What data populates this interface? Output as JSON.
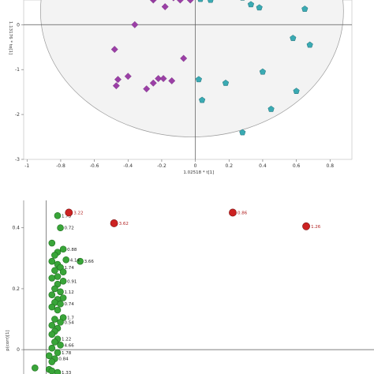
{
  "chart_data": [
    {
      "type": "scatter",
      "xlabel": "1.02518 * t[1]",
      "ylabel": "1.13176 * to[1]",
      "xlim": [
        -1.02,
        0.93
      ],
      "ylim": [
        -3.0,
        0.62
      ],
      "x_ticks": [
        "-1",
        "-0.8",
        "-0.6",
        "-0.4",
        "-0.2",
        "0",
        "0.2",
        "0.4",
        "0.6",
        "0.8"
      ],
      "y_ticks": [
        "-3",
        "-2",
        "-1",
        "0"
      ],
      "ellipse": {
        "center": [
          -0.02,
          0.3
        ],
        "radius_x": 0.9,
        "radius_y": 2.8
      },
      "colors": {
        "group_a": "#9b3fa6",
        "group_b": "#3aaab3",
        "ellipse_fill": "#f3f3f3"
      },
      "series": [
        {
          "marker": "diamond",
          "x": [
            -0.36,
            -0.48,
            -0.46,
            -0.4,
            -0.47,
            -0.29,
            -0.22,
            -0.25,
            -0.19,
            -0.14,
            -0.25,
            -0.07,
            -0.09,
            -0.03,
            -0.18,
            -0.13,
            -0.25
          ],
          "y": [
            0.0,
            -0.55,
            -1.22,
            -1.15,
            -1.36,
            -1.43,
            -1.2,
            -1.3,
            -1.2,
            -1.25,
            0.55,
            -0.75,
            0.55,
            0.55,
            0.4,
            0.6,
            0.59
          ]
        },
        {
          "marker": "pentagon",
          "x": [
            0.03,
            0.02,
            0.04,
            0.18,
            0.28,
            0.33,
            0.38,
            0.4,
            0.58,
            0.65,
            0.68,
            0.6,
            0.45,
            0.28,
            0.09
          ],
          "y": [
            0.57,
            -1.22,
            -1.68,
            -1.3,
            -2.4,
            0.45,
            0.38,
            -1.05,
            -0.3,
            0.35,
            -0.45,
            -1.48,
            -1.88,
            0.6,
            0.55
          ]
        }
      ]
    },
    {
      "type": "scatter",
      "xlabel": "",
      "ylabel": "p(corr)[1]",
      "xlim": [
        -0.04,
        0.58
      ],
      "ylim": [
        -0.08,
        0.49
      ],
      "y_ticks": [
        "0",
        "0.2",
        "0.4"
      ],
      "colors": {
        "normal": "#39a539",
        "highlight": "#cc2222"
      },
      "red_points": [
        {
          "x": 0.04,
          "y": 0.45,
          "label": "3.22"
        },
        {
          "x": 0.12,
          "y": 0.415,
          "label": "3.62"
        },
        {
          "x": 0.33,
          "y": 0.45,
          "label": "0.86"
        },
        {
          "x": 0.46,
          "y": 0.405,
          "label": "1.26"
        }
      ],
      "green_points": {
        "x": [
          0.02,
          0.025,
          0.01,
          0.03,
          0.02,
          0.015,
          0.035,
          0.01,
          0.02,
          0.06,
          0.025,
          0.015,
          0.03,
          0.02,
          0.01,
          0.03,
          0.02,
          0.015,
          0.025,
          0.01,
          0.03,
          0.02,
          0.015,
          0.025,
          0.01,
          0.02,
          0.03,
          0.015,
          0.025,
          0.01,
          0.02,
          0.015,
          0.01,
          0.02,
          0.015,
          0.025,
          0.01,
          0.02,
          0.005,
          0.015,
          0.01,
          -0.02,
          0.005,
          0.01,
          0.02
        ],
        "y": [
          0.44,
          0.4,
          0.35,
          0.33,
          0.32,
          0.31,
          0.295,
          0.29,
          0.28,
          0.29,
          0.27,
          0.26,
          0.255,
          0.24,
          0.235,
          0.225,
          0.215,
          0.2,
          0.19,
          0.18,
          0.17,
          0.165,
          0.155,
          0.15,
          0.14,
          0.13,
          0.105,
          0.1,
          0.09,
          0.08,
          0.07,
          0.06,
          0.05,
          0.035,
          0.025,
          0.015,
          0.005,
          -0.01,
          -0.02,
          -0.03,
          -0.04,
          -0.06,
          -0.065,
          -0.07,
          -0.075
        ]
      },
      "labels": [
        {
          "x": 0.02,
          "y": 0.44,
          "text": "1.73"
        },
        {
          "x": 0.025,
          "y": 0.4,
          "text": "0.72"
        },
        {
          "x": 0.03,
          "y": 0.33,
          "text": "0.88"
        },
        {
          "x": 0.035,
          "y": 0.295,
          "text": "4.14"
        },
        {
          "x": 0.06,
          "y": 0.29,
          "text": "3.66"
        },
        {
          "x": 0.025,
          "y": 0.27,
          "text": "1.74"
        },
        {
          "x": 0.03,
          "y": 0.225,
          "text": "0.91"
        },
        {
          "x": 0.025,
          "y": 0.19,
          "text": "1.12"
        },
        {
          "x": 0.025,
          "y": 0.15,
          "text": "0.74"
        },
        {
          "x": 0.03,
          "y": 0.105,
          "text": "1.7"
        },
        {
          "x": 0.025,
          "y": 0.09,
          "text": "0.54"
        },
        {
          "x": 0.02,
          "y": 0.035,
          "text": "1.22"
        },
        {
          "x": 0.025,
          "y": 0.015,
          "text": "4.66"
        },
        {
          "x": 0.02,
          "y": -0.01,
          "text": "1.78"
        },
        {
          "x": 0.015,
          "y": -0.03,
          "text": "0.84"
        },
        {
          "x": 0.02,
          "y": -0.075,
          "text": "1.33"
        }
      ]
    }
  ]
}
